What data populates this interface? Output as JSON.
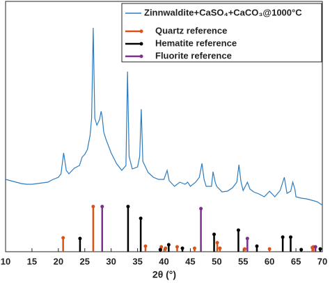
{
  "chart_data": {
    "type": "line",
    "xlabel": "2θ (°)",
    "xlim": [
      10,
      70
    ],
    "xticks": [
      10,
      15,
      20,
      25,
      30,
      35,
      40,
      45,
      50,
      55,
      60,
      65,
      70
    ],
    "ylim": [
      0,
      360
    ],
    "legend": "top-right",
    "series": [
      {
        "name": "Zinnwaldite+CaSO₄+CaCO₃@1000°C",
        "style": "line",
        "color": "#2b7bbf",
        "x": [
          10,
          11,
          12,
          13,
          14,
          15,
          16,
          17,
          18,
          19,
          20,
          20.5,
          21,
          21.5,
          22,
          23,
          24,
          24.5,
          25,
          25.5,
          26,
          26.3,
          26.6,
          26.9,
          27.3,
          27.8,
          28.1,
          28.3,
          28.6,
          29,
          30,
          31,
          32,
          32.8,
          33.1,
          33.4,
          34,
          35,
          35.4,
          35.7,
          36,
          37,
          38,
          39,
          40,
          40.6,
          41,
          42,
          43,
          44,
          44.5,
          45,
          46,
          46.7,
          47.2,
          47.6,
          48,
          49,
          49.3,
          49.7,
          50,
          51,
          52,
          53,
          53.8,
          54.2,
          54.6,
          55,
          55.8,
          56.3,
          57,
          58,
          59,
          60,
          61,
          62,
          62.8,
          63.3,
          64,
          64.4,
          64.8,
          65,
          66,
          67,
          68,
          69,
          70
        ],
        "values": [
          104,
          102,
          100,
          98,
          97,
          97,
          98,
          99,
          100,
          104,
          107,
          112,
          142,
          117,
          112,
          120,
          124,
          136,
          140,
          147,
          167,
          192,
          322,
          192,
          182,
          190,
          202,
          194,
          172,
          162,
          142,
          127,
          117,
          124,
          259,
          137,
          119,
          122,
          137,
          205,
          130,
          114,
          107,
          104,
          104,
          117,
          102,
          94,
          100,
          97,
          100,
          94,
          100,
          107,
          127,
          104,
          94,
          94,
          115,
          100,
          94,
          86,
          87,
          92,
          100,
          125,
          100,
          88,
          100,
          90,
          86,
          83,
          79,
          87,
          79,
          88,
          107,
          84,
          87,
          100,
          90,
          79,
          77,
          76,
          74,
          72,
          67
        ]
      },
      {
        "name": "Quartz reference",
        "style": "stem",
        "color": "#d95319",
        "x": [
          20.9,
          26.6,
          36.5,
          39.5,
          40.3,
          42.5,
          45.8,
          50.1,
          50.6,
          55.3,
          60,
          68.1,
          68.3
        ],
        "values": [
          20,
          65,
          8,
          7,
          5,
          7,
          5,
          13,
          5,
          4,
          4,
          6,
          7
        ]
      },
      {
        "name": "Hematite reference",
        "style": "stem",
        "color": "#000000",
        "x": [
          24.1,
          33.2,
          35.6,
          39.3,
          40.9,
          43.5,
          49.5,
          54.1,
          57.6,
          62.5,
          64.0,
          66,
          69.6
        ],
        "values": [
          19,
          65,
          48,
          3,
          10,
          5,
          25,
          31,
          8,
          21,
          21,
          3,
          4
        ]
      },
      {
        "name": "Fluorite reference",
        "style": "stem",
        "color": "#7e2f8e",
        "x": [
          28.3,
          47.0,
          55.8,
          68.7
        ],
        "values": [
          65,
          62,
          19,
          7
        ]
      }
    ]
  }
}
